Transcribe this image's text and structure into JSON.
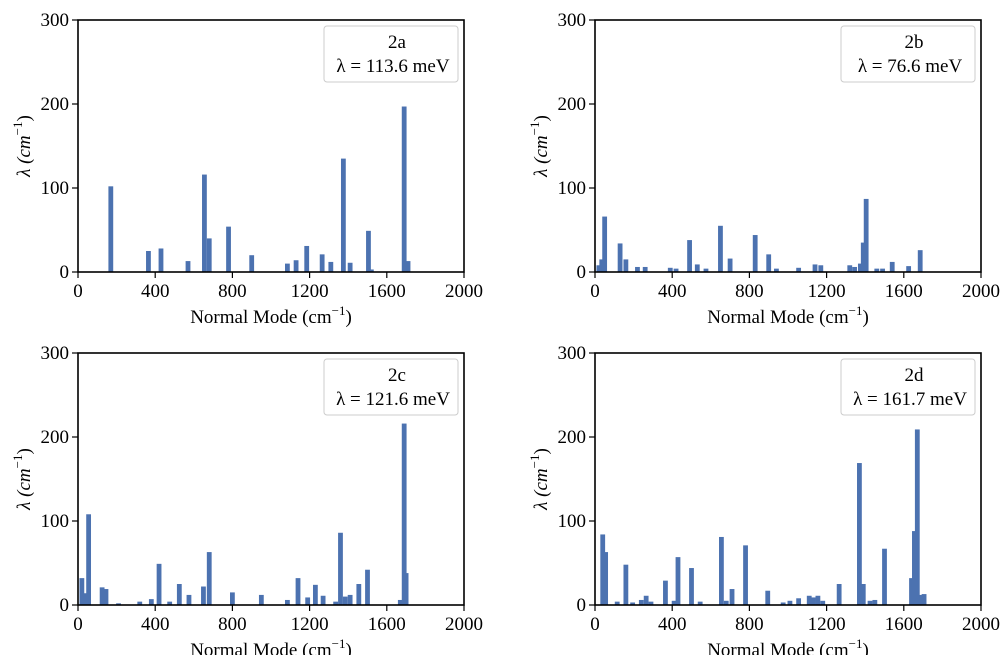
{
  "colors": {
    "bar": "#4c72b0",
    "axis": "#000000",
    "legend_border": "#cccccc"
  },
  "chart_data": [
    {
      "id": "2a",
      "type": "bar",
      "xlabel_main": "Normal Mode",
      "xlabel_unit": "(cm",
      "xlabel_sup": "−1",
      "xlabel_close": ")",
      "ylabel_main": "λ (cm",
      "ylabel_sup": "−1",
      "ylabel_close": ")",
      "xlim": [
        0,
        2000
      ],
      "ylim": [
        0,
        300
      ],
      "xticks": [
        "0",
        "400",
        "800",
        "1200",
        "1600",
        "2000"
      ],
      "yticks": [
        "0",
        "100",
        "200",
        "300"
      ],
      "legend": {
        "label": "2a",
        "lambda_text": "λ = 113.6 meV",
        "position": "upper right"
      },
      "bars": [
        {
          "x": 170,
          "y": 102
        },
        {
          "x": 365,
          "y": 25
        },
        {
          "x": 430,
          "y": 28
        },
        {
          "x": 570,
          "y": 13
        },
        {
          "x": 655,
          "y": 116
        },
        {
          "x": 680,
          "y": 40
        },
        {
          "x": 780,
          "y": 54
        },
        {
          "x": 900,
          "y": 20
        },
        {
          "x": 1085,
          "y": 10
        },
        {
          "x": 1130,
          "y": 14
        },
        {
          "x": 1185,
          "y": 31
        },
        {
          "x": 1265,
          "y": 21
        },
        {
          "x": 1310,
          "y": 12
        },
        {
          "x": 1375,
          "y": 135
        },
        {
          "x": 1410,
          "y": 11
        },
        {
          "x": 1505,
          "y": 49
        },
        {
          "x": 1520,
          "y": 3
        },
        {
          "x": 1690,
          "y": 197
        },
        {
          "x": 1710,
          "y": 13
        }
      ]
    },
    {
      "id": "2b",
      "type": "bar",
      "xlabel_main": "Normal Mode",
      "xlabel_unit": "(cm",
      "xlabel_sup": "−1",
      "xlabel_close": ")",
      "ylabel_main": "λ (cm",
      "ylabel_sup": "−1",
      "ylabel_close": ")",
      "xlim": [
        0,
        2000
      ],
      "ylim": [
        0,
        300
      ],
      "xticks": [
        "0",
        "400",
        "800",
        "1200",
        "1600",
        "2000"
      ],
      "yticks": [
        "0",
        "100",
        "200",
        "300"
      ],
      "legend": {
        "label": "2b",
        "lambda_text": "λ = 76.6 meV",
        "position": "upper right"
      },
      "bars": [
        {
          "x": 20,
          "y": 8
        },
        {
          "x": 35,
          "y": 15
        },
        {
          "x": 50,
          "y": 66
        },
        {
          "x": 130,
          "y": 34
        },
        {
          "x": 160,
          "y": 15
        },
        {
          "x": 220,
          "y": 6
        },
        {
          "x": 260,
          "y": 6
        },
        {
          "x": 390,
          "y": 5
        },
        {
          "x": 420,
          "y": 4
        },
        {
          "x": 490,
          "y": 38
        },
        {
          "x": 530,
          "y": 9
        },
        {
          "x": 575,
          "y": 4
        },
        {
          "x": 650,
          "y": 55
        },
        {
          "x": 700,
          "y": 16
        },
        {
          "x": 830,
          "y": 44
        },
        {
          "x": 900,
          "y": 21
        },
        {
          "x": 940,
          "y": 4
        },
        {
          "x": 1055,
          "y": 5
        },
        {
          "x": 1140,
          "y": 9
        },
        {
          "x": 1170,
          "y": 8
        },
        {
          "x": 1320,
          "y": 8
        },
        {
          "x": 1345,
          "y": 6
        },
        {
          "x": 1375,
          "y": 10
        },
        {
          "x": 1390,
          "y": 35
        },
        {
          "x": 1405,
          "y": 87
        },
        {
          "x": 1460,
          "y": 4
        },
        {
          "x": 1490,
          "y": 4
        },
        {
          "x": 1540,
          "y": 12
        },
        {
          "x": 1625,
          "y": 7
        },
        {
          "x": 1685,
          "y": 26
        }
      ]
    },
    {
      "id": "2c",
      "type": "bar",
      "xlabel_main": "Normal Mode",
      "xlabel_unit": "(cm",
      "xlabel_sup": "−1",
      "xlabel_close": ")",
      "ylabel_main": "λ (cm",
      "ylabel_sup": "−1",
      "ylabel_close": ")",
      "xlim": [
        0,
        2000
      ],
      "ylim": [
        0,
        300
      ],
      "xticks": [
        "0",
        "400",
        "800",
        "1200",
        "1600",
        "2000"
      ],
      "yticks": [
        "0",
        "100",
        "200",
        "300"
      ],
      "legend": {
        "label": "2c",
        "lambda_text": "λ = 121.6 meV",
        "position": "upper right"
      },
      "bars": [
        {
          "x": 20,
          "y": 32
        },
        {
          "x": 38,
          "y": 14
        },
        {
          "x": 55,
          "y": 108
        },
        {
          "x": 125,
          "y": 21
        },
        {
          "x": 145,
          "y": 19
        },
        {
          "x": 210,
          "y": 2
        },
        {
          "x": 320,
          "y": 4
        },
        {
          "x": 380,
          "y": 7
        },
        {
          "x": 420,
          "y": 49
        },
        {
          "x": 475,
          "y": 4
        },
        {
          "x": 525,
          "y": 25
        },
        {
          "x": 575,
          "y": 12
        },
        {
          "x": 650,
          "y": 22
        },
        {
          "x": 680,
          "y": 63
        },
        {
          "x": 800,
          "y": 15
        },
        {
          "x": 950,
          "y": 12
        },
        {
          "x": 1085,
          "y": 6
        },
        {
          "x": 1140,
          "y": 32
        },
        {
          "x": 1190,
          "y": 9
        },
        {
          "x": 1230,
          "y": 24
        },
        {
          "x": 1270,
          "y": 11
        },
        {
          "x": 1335,
          "y": 4
        },
        {
          "x": 1360,
          "y": 86
        },
        {
          "x": 1385,
          "y": 10
        },
        {
          "x": 1410,
          "y": 12
        },
        {
          "x": 1455,
          "y": 25
        },
        {
          "x": 1500,
          "y": 42
        },
        {
          "x": 1670,
          "y": 6
        },
        {
          "x": 1690,
          "y": 216
        },
        {
          "x": 1700,
          "y": 38
        }
      ]
    },
    {
      "id": "2d",
      "type": "bar",
      "xlabel_main": "Normal Mode",
      "xlabel_unit": "(cm",
      "xlabel_sup": "−1",
      "xlabel_close": ")",
      "ylabel_main": "λ (cm",
      "ylabel_sup": "−1",
      "ylabel_close": ")",
      "xlim": [
        0,
        2000
      ],
      "ylim": [
        0,
        300
      ],
      "xticks": [
        "0",
        "400",
        "800",
        "1200",
        "1600",
        "2000"
      ],
      "yticks": [
        "0",
        "100",
        "200",
        "300"
      ],
      "legend": {
        "label": "2d",
        "lambda_text": "λ = 161.7 meV",
        "position": "upper right"
      },
      "bars": [
        {
          "x": 40,
          "y": 84
        },
        {
          "x": 55,
          "y": 63
        },
        {
          "x": 115,
          "y": 4
        },
        {
          "x": 160,
          "y": 48
        },
        {
          "x": 195,
          "y": 3
        },
        {
          "x": 240,
          "y": 6
        },
        {
          "x": 265,
          "y": 11
        },
        {
          "x": 290,
          "y": 4
        },
        {
          "x": 365,
          "y": 29
        },
        {
          "x": 410,
          "y": 5
        },
        {
          "x": 430,
          "y": 57
        },
        {
          "x": 500,
          "y": 44
        },
        {
          "x": 545,
          "y": 4
        },
        {
          "x": 655,
          "y": 81
        },
        {
          "x": 680,
          "y": 5
        },
        {
          "x": 710,
          "y": 19
        },
        {
          "x": 780,
          "y": 71
        },
        {
          "x": 895,
          "y": 17
        },
        {
          "x": 975,
          "y": 3
        },
        {
          "x": 1010,
          "y": 5
        },
        {
          "x": 1055,
          "y": 8
        },
        {
          "x": 1110,
          "y": 11
        },
        {
          "x": 1130,
          "y": 9
        },
        {
          "x": 1155,
          "y": 11
        },
        {
          "x": 1180,
          "y": 5
        },
        {
          "x": 1265,
          "y": 25
        },
        {
          "x": 1370,
          "y": 169
        },
        {
          "x": 1390,
          "y": 25
        },
        {
          "x": 1425,
          "y": 5
        },
        {
          "x": 1450,
          "y": 6
        },
        {
          "x": 1500,
          "y": 67
        },
        {
          "x": 1640,
          "y": 32
        },
        {
          "x": 1655,
          "y": 88
        },
        {
          "x": 1670,
          "y": 209
        },
        {
          "x": 1690,
          "y": 12
        },
        {
          "x": 1705,
          "y": 13
        }
      ]
    }
  ]
}
